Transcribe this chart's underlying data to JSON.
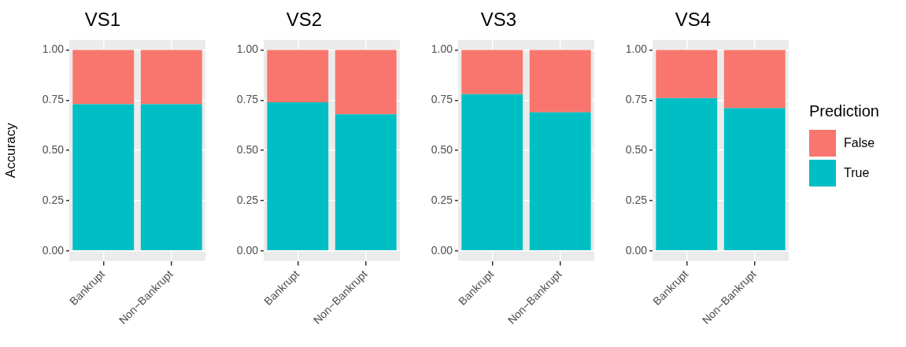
{
  "chart_data": [
    {
      "type": "bar",
      "stacked": true,
      "title": "VS1",
      "ylabel": "Accuracy",
      "categories": [
        "Bankrupt",
        "Non−Bankrupt"
      ],
      "series": [
        {
          "color": "#00bfc4",
          "values": [
            0.73,
            0.73
          ]
        },
        {
          "color": "#f8766d",
          "values": [
            0.27,
            0.27
          ]
        }
      ],
      "ylim": [
        -0.05,
        1.05
      ],
      "yticks": [
        {
          "value": 0,
          "label": "0.00"
        },
        {
          "value": 0.25,
          "label": "0.25"
        },
        {
          "value": 0.5,
          "label": "0.50"
        },
        {
          "value": 0.75,
          "label": "0.75"
        },
        {
          "value": 1,
          "label": "1.00"
        }
      ],
      "grid": true,
      "legend": false
    },
    {
      "type": "bar",
      "stacked": true,
      "title": "VS2",
      "categories": [
        "Bankrupt",
        "Non−Bankrupt"
      ],
      "series": [
        {
          "color": "#00bfc4",
          "values": [
            0.74,
            0.68
          ]
        },
        {
          "color": "#f8766d",
          "values": [
            0.26,
            0.32
          ]
        }
      ],
      "ylim": [
        -0.05,
        1.05
      ],
      "yticks": [
        {
          "value": 0,
          "label": "0.00"
        },
        {
          "value": 0.25,
          "label": "0.25"
        },
        {
          "value": 0.5,
          "label": "0.50"
        },
        {
          "value": 0.75,
          "label": "0.75"
        },
        {
          "value": 1,
          "label": "1.00"
        }
      ],
      "grid": true,
      "legend": false
    },
    {
      "type": "bar",
      "stacked": true,
      "title": "VS3",
      "categories": [
        "Bankrupt",
        "Non−Bankrupt"
      ],
      "series": [
        {
          "color": "#00bfc4",
          "values": [
            0.78,
            0.69
          ]
        },
        {
          "color": "#f8766d",
          "values": [
            0.22,
            0.31
          ]
        }
      ],
      "ylim": [
        -0.05,
        1.05
      ],
      "yticks": [
        {
          "value": 0,
          "label": "0.00"
        },
        {
          "value": 0.25,
          "label": "0.25"
        },
        {
          "value": 0.5,
          "label": "0.50"
        },
        {
          "value": 0.75,
          "label": "0.75"
        },
        {
          "value": 1,
          "label": "1.00"
        }
      ],
      "grid": true,
      "legend": false
    },
    {
      "type": "bar",
      "stacked": true,
      "title": "VS4",
      "categories": [
        "Bankrupt",
        "Non−Bankrupt"
      ],
      "series": [
        {
          "name": "True",
          "color": "#00bfc4",
          "values": [
            0.76,
            0.71
          ]
        },
        {
          "name": "False",
          "color": "#f8766d",
          "values": [
            0.24,
            0.29
          ]
        }
      ],
      "ylim": [
        -0.05,
        1.05
      ],
      "yticks": [
        {
          "value": 0,
          "label": "0.00"
        },
        {
          "value": 0.25,
          "label": "0.25"
        },
        {
          "value": 0.5,
          "label": "0.50"
        },
        {
          "value": 0.75,
          "label": "0.75"
        },
        {
          "value": 1,
          "label": "1.00"
        }
      ],
      "grid": true,
      "legend": "right",
      "legend_title": "Prediction"
    }
  ]
}
